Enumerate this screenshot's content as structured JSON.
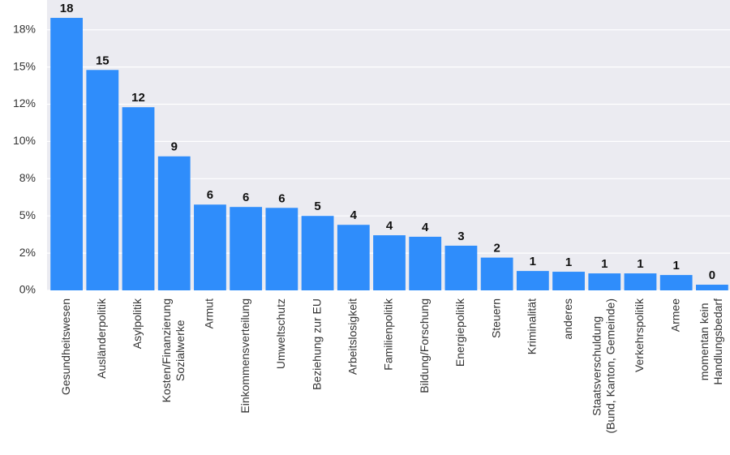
{
  "chart_data": {
    "type": "bar",
    "categories": [
      [
        "Gesundheitswesen"
      ],
      [
        "Ausländerpolitik"
      ],
      [
        "Asylpolitik"
      ],
      [
        "Kosten/Finanzierung",
        "Sozialwerke"
      ],
      [
        "Armut"
      ],
      [
        "Einkommensverteilung"
      ],
      [
        "Umweltschutz"
      ],
      [
        "Beziehung zur EU"
      ],
      [
        "Arbeitslosigkeit"
      ],
      [
        "Familienpolitik"
      ],
      [
        "Bildung/Forschung"
      ],
      [
        "Energiepolitik"
      ],
      [
        "Steuern"
      ],
      [
        "Kriminalität"
      ],
      [
        "anderes"
      ],
      [
        "Staatsverschuldung",
        "(Bund, Kanton, Gemeinde)"
      ],
      [
        "Verkehrspolitik"
      ],
      [
        "Armee"
      ],
      [
        "momentan kein",
        "Handlungsbedarf"
      ]
    ],
    "values": [
      18.3,
      14.8,
      12.3,
      9.0,
      5.76,
      5.6,
      5.54,
      5.0,
      4.4,
      3.7,
      3.6,
      3.0,
      2.2,
      1.3,
      1.25,
      1.14,
      1.14,
      1.03,
      0.38
    ],
    "value_labels": [
      "18",
      "15",
      "12",
      "9",
      "6",
      "6",
      "6",
      "5",
      "4",
      "4",
      "4",
      "3",
      "2",
      "1",
      "1",
      "1",
      "1",
      "1",
      "0"
    ],
    "color": "#2f8dfb",
    "ylim": [
      0,
      19.5
    ],
    "yticks": [
      {
        "value": 0,
        "label": "0%"
      },
      {
        "value": 2.5,
        "label": "2%"
      },
      {
        "value": 5,
        "label": "5%"
      },
      {
        "value": 7.5,
        "label": "8%"
      },
      {
        "value": 10,
        "label": "10%"
      },
      {
        "value": 12.5,
        "label": "12%"
      },
      {
        "value": 15,
        "label": "15%"
      },
      {
        "value": 17.5,
        "label": "18%"
      }
    ],
    "grid": true
  }
}
